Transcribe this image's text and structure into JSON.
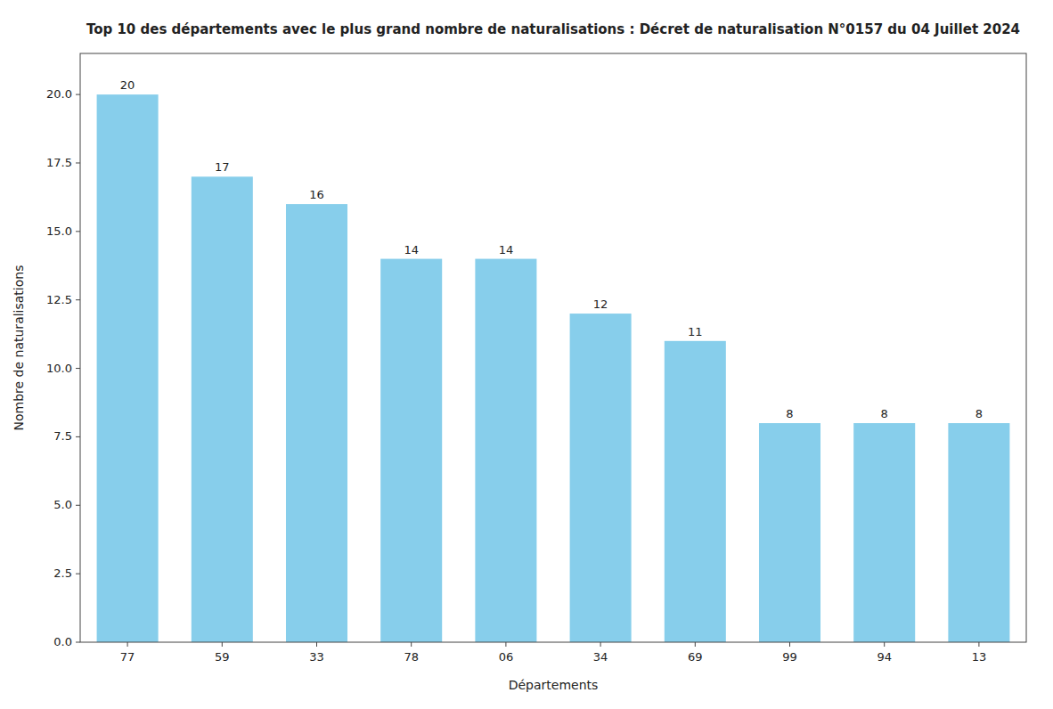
{
  "chart_data": {
    "type": "bar",
    "title": "Top 10 des départements avec le plus grand nombre de naturalisations : Décret de naturalisation N°0157 du 04 Juillet 2024",
    "xlabel": "Départements",
    "ylabel": "Nombre de naturalisations",
    "categories": [
      "77",
      "59",
      "33",
      "78",
      "06",
      "34",
      "69",
      "99",
      "94",
      "13"
    ],
    "values": [
      20,
      17,
      16,
      14,
      14,
      12,
      11,
      8,
      8,
      8
    ],
    "color": "#87CEEB",
    "ylim": [
      0,
      21.5
    ],
    "yticks": [
      {
        "value": 0,
        "label": "0.0"
      },
      2.5,
      {
        "value": 5,
        "label": "5.0"
      },
      7.5,
      {
        "value": 10,
        "label": "10.0"
      },
      12.5,
      {
        "value": 15,
        "label": "15.0"
      },
      17.5,
      {
        "value": 20,
        "label": "20.0"
      }
    ],
    "grid": false,
    "data_labels": true
  }
}
